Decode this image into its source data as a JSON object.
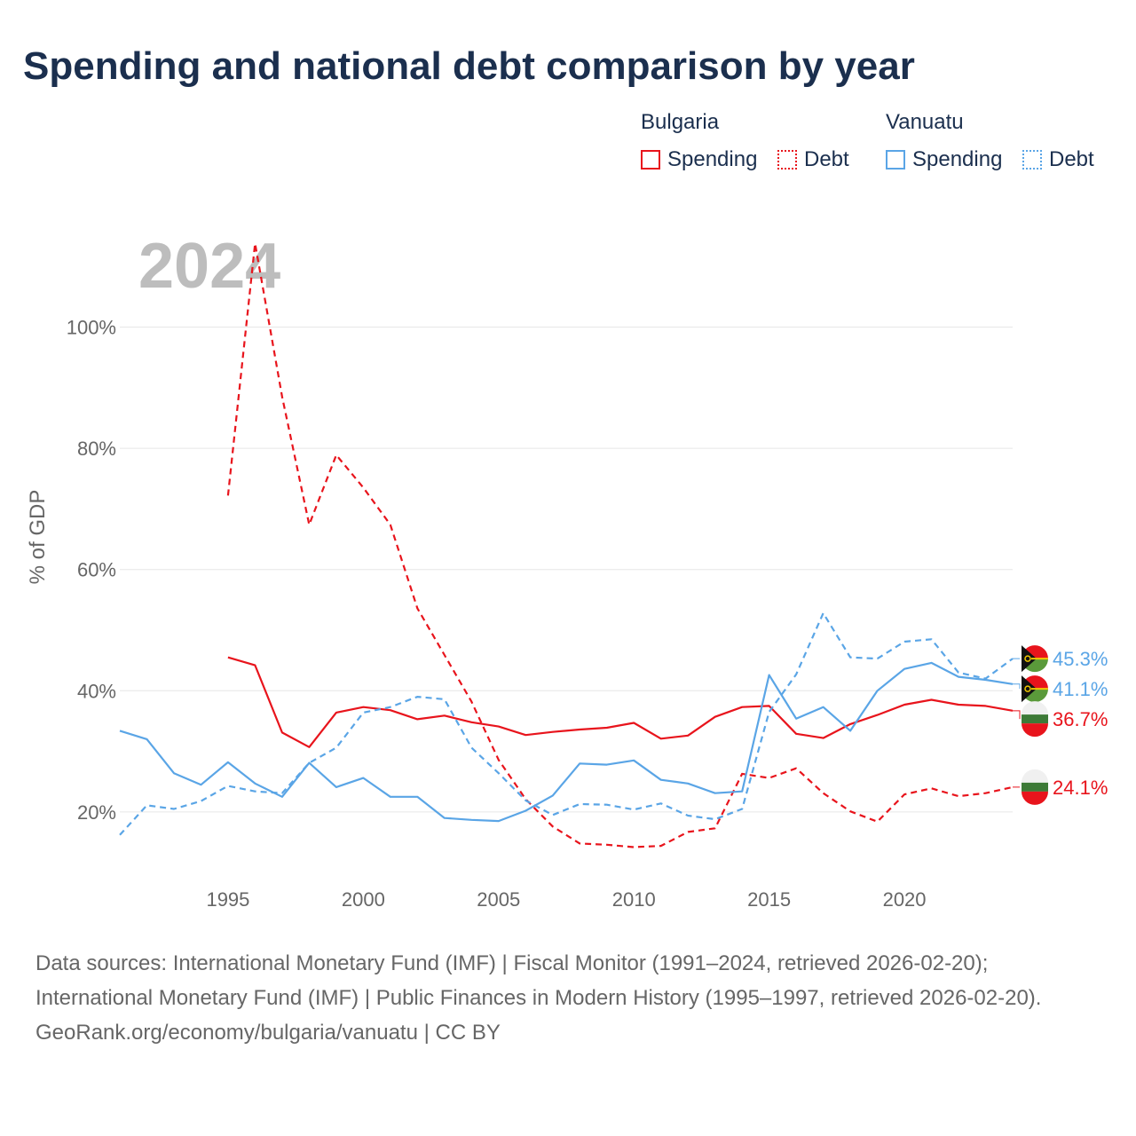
{
  "title": "Spending and national debt comparison by year",
  "legend": {
    "groups": [
      {
        "name": "Bulgaria",
        "color": "#e8141c",
        "items": [
          {
            "label": "Spending",
            "style": "solid"
          },
          {
            "label": "Debt",
            "style": "dotted"
          }
        ]
      },
      {
        "name": "Vanuatu",
        "color": "#5aa5e6",
        "items": [
          {
            "label": "Spending",
            "style": "solid"
          },
          {
            "label": "Debt",
            "style": "dotted"
          }
        ]
      }
    ]
  },
  "chart_data": {
    "type": "line",
    "year_label": "2024",
    "ylabel": "% of GDP",
    "xlim": [
      1991,
      2024
    ],
    "ylim": [
      9,
      120
    ],
    "x_ticks": [
      1995,
      2000,
      2005,
      2010,
      2015,
      2020
    ],
    "y_ticks": [
      20,
      40,
      60,
      80,
      100
    ],
    "y_tick_labels": [
      "20%",
      "40%",
      "60%",
      "80%",
      "100%"
    ],
    "series": [
      {
        "name": "Bulgaria Spending",
        "country": "Bulgaria",
        "color": "#e8141c",
        "dashed": false,
        "x": [
          1995,
          1996,
          1997,
          1998,
          1999,
          2000,
          2001,
          2002,
          2003,
          2004,
          2005,
          2006,
          2007,
          2008,
          2009,
          2010,
          2011,
          2012,
          2013,
          2014,
          2015,
          2016,
          2017,
          2018,
          2019,
          2020,
          2021,
          2022,
          2023,
          2024
        ],
        "values": [
          45.5,
          44.2,
          33.1,
          30.7,
          36.4,
          37.3,
          36.8,
          35.3,
          35.9,
          34.8,
          34.1,
          32.7,
          33.2,
          33.6,
          33.9,
          34.7,
          32.1,
          32.6,
          35.7,
          37.3,
          37.5,
          32.9,
          32.2,
          34.5,
          36.0,
          37.7,
          38.5,
          37.7,
          37.5,
          36.7
        ],
        "end_label": "36.7%"
      },
      {
        "name": "Bulgaria Debt",
        "country": "Bulgaria",
        "color": "#e8141c",
        "dashed": true,
        "x": [
          1995,
          1996,
          1997,
          1998,
          1999,
          2000,
          2001,
          2002,
          2003,
          2004,
          2005,
          2006,
          2007,
          2008,
          2009,
          2010,
          2011,
          2012,
          2013,
          2014,
          2015,
          2016,
          2017,
          2018,
          2019,
          2020,
          2021,
          2022,
          2023,
          2024
        ],
        "values": [
          72.2,
          113.8,
          88.5,
          67.4,
          78.9,
          73.5,
          67.4,
          53.6,
          45.9,
          38.2,
          28.6,
          22.1,
          17.6,
          14.8,
          14.6,
          14.2,
          14.4,
          16.7,
          17.3,
          26.3,
          25.6,
          27.2,
          23.1,
          20.1,
          18.4,
          22.9,
          23.9,
          22.6,
          23.1,
          24.1
        ],
        "end_label": "24.1%"
      },
      {
        "name": "Vanuatu Spending",
        "country": "Vanuatu",
        "color": "#5aa5e6",
        "dashed": false,
        "x": [
          1991,
          1992,
          1993,
          1994,
          1995,
          1996,
          1997,
          1998,
          1999,
          2000,
          2001,
          2002,
          2003,
          2004,
          2005,
          2006,
          2007,
          2008,
          2009,
          2010,
          2011,
          2012,
          2013,
          2014,
          2015,
          2016,
          2017,
          2018,
          2019,
          2020,
          2021,
          2022,
          2023,
          2024
        ],
        "values": [
          33.4,
          32.0,
          26.4,
          24.5,
          28.2,
          24.7,
          22.5,
          28.1,
          24.1,
          25.6,
          22.5,
          22.5,
          19.0,
          18.7,
          18.5,
          20.2,
          22.7,
          28.0,
          27.8,
          28.5,
          25.3,
          24.7,
          23.1,
          23.4,
          42.6,
          35.4,
          37.3,
          33.4,
          40.0,
          43.6,
          44.6,
          42.3,
          41.8,
          41.1
        ],
        "end_label": "41.1%"
      },
      {
        "name": "Vanuatu Debt",
        "country": "Vanuatu",
        "color": "#5aa5e6",
        "dashed": true,
        "x": [
          1991,
          1992,
          1993,
          1994,
          1995,
          1996,
          1997,
          1998,
          1999,
          2000,
          2001,
          2002,
          2003,
          2004,
          2005,
          2006,
          2007,
          2008,
          2009,
          2010,
          2011,
          2012,
          2013,
          2014,
          2015,
          2016,
          2017,
          2018,
          2019,
          2020,
          2021,
          2022,
          2023,
          2024
        ],
        "values": [
          16.2,
          21.1,
          20.5,
          21.8,
          24.3,
          23.4,
          23.1,
          28.1,
          30.6,
          36.4,
          37.3,
          39.0,
          38.6,
          30.6,
          26.4,
          21.9,
          19.5,
          21.3,
          21.2,
          20.4,
          21.4,
          19.4,
          18.8,
          20.5,
          36.5,
          42.7,
          52.8,
          45.5,
          45.3,
          48.1,
          48.5,
          43.0,
          42.0,
          45.3
        ],
        "end_label": "45.3%"
      }
    ]
  },
  "sources": {
    "line1": "Data sources: International Monetary Fund (IMF) | Fiscal Monitor (1991–2024, retrieved 2026-02-20); International Monetary Fund (IMF) | Public Finances in Modern History (1995–1997, retrieved 2026-02-20).",
    "line2": "GeoRank.org/economy/bulgaria/vanuatu | CC BY"
  }
}
